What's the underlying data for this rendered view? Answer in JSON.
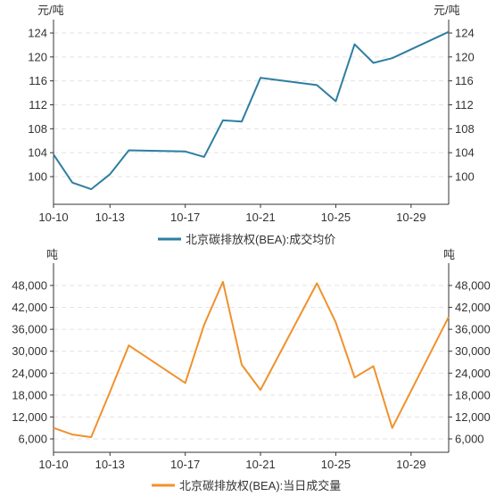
{
  "chart_data": [
    {
      "type": "line",
      "categories": [
        "10-10",
        "10-11",
        "10-12",
        "10-13",
        "10-14",
        "10-17",
        "10-18",
        "10-19",
        "10-20",
        "10-21",
        "10-24",
        "10-25",
        "10-26",
        "10-27",
        "10-28",
        "10-31"
      ],
      "x_tick_labels": [
        "10-10",
        "10-13",
        "10-17",
        "10-21",
        "10-25",
        "10-29"
      ],
      "series": [
        {
          "name": "北京碳排放权(BEA):成交均价",
          "values": [
            103.7,
            99.0,
            97.9,
            100.4,
            104.4,
            104.2,
            103.3,
            109.4,
            109.2,
            116.5,
            115.3,
            112.6,
            122.1,
            119.0,
            119.8,
            124.2
          ],
          "color": "#2e7ea2"
        }
      ],
      "ylabel_left": "元/吨",
      "ylabel_right": "元/吨",
      "ylim": [
        96,
        126
      ],
      "y_ticks": [
        100,
        104,
        108,
        112,
        116,
        120,
        124
      ],
      "grid": true,
      "legend": "bottom"
    },
    {
      "type": "line",
      "categories": [
        "10-10",
        "10-11",
        "10-12",
        "10-13",
        "10-14",
        "10-17",
        "10-18",
        "10-19",
        "10-20",
        "10-21",
        "10-24",
        "10-25",
        "10-26",
        "10-27",
        "10-28",
        "10-31"
      ],
      "x_tick_labels": [
        "10-10",
        "10-13",
        "10-17",
        "10-21",
        "10-25",
        "10-29"
      ],
      "series": [
        {
          "name": "北京碳排放权(BEA):当日成交量",
          "values": [
            9000,
            7200,
            6500,
            18900,
            31600,
            21300,
            37200,
            49000,
            26300,
            19400,
            48600,
            37900,
            22800,
            25900,
            9000,
            39400
          ],
          "color": "#f0912c"
        }
      ],
      "ylabel_left": "吨",
      "ylabel_right": "吨",
      "ylim": [
        4000,
        51000
      ],
      "y_ticks": [
        6000,
        12000,
        18000,
        24000,
        30000,
        36000,
        42000,
        48000
      ],
      "y_tick_labels": [
        "6,000",
        "12,000",
        "18,000",
        "24,000",
        "30,000",
        "36,000",
        "42,000",
        "48,000"
      ],
      "grid": true,
      "legend": "bottom"
    }
  ]
}
